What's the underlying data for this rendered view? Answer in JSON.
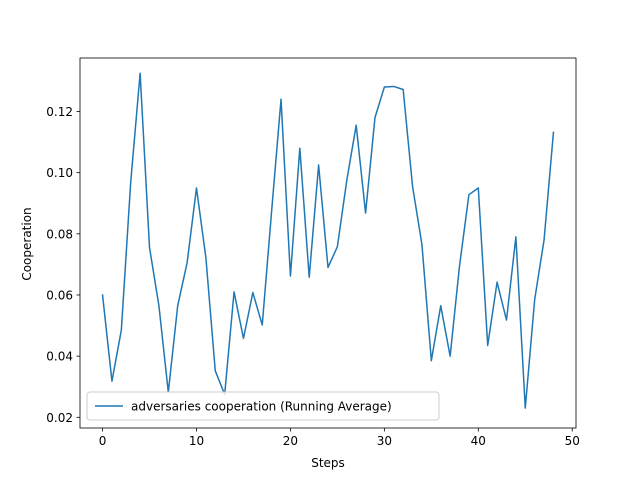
{
  "chart_data": {
    "type": "line",
    "xlabel": "Steps",
    "ylabel": "Cooperation",
    "xlim": [
      -2.4,
      50.4
    ],
    "ylim": [
      0.0165,
      0.1375
    ],
    "xticks": [
      0,
      10,
      20,
      30,
      40,
      50
    ],
    "xtick_labels": [
      "0",
      "10",
      "20",
      "30",
      "40",
      "50"
    ],
    "yticks": [
      0.02,
      0.04,
      0.06,
      0.08,
      0.1,
      0.12
    ],
    "ytick_labels": [
      "0.02",
      "0.04",
      "0.06",
      "0.08",
      "0.10",
      "0.12"
    ],
    "grid": false,
    "legend_position": "lower-left",
    "series": [
      {
        "name": "adversaries cooperation (Running Average)",
        "color": "#1f77b4",
        "x": [
          0,
          1,
          2,
          3,
          4,
          5,
          6,
          7,
          8,
          9,
          10,
          11,
          12,
          13,
          14,
          15,
          16,
          17,
          18,
          19,
          20,
          21,
          22,
          23,
          24,
          25,
          26,
          27,
          28,
          29,
          30,
          31,
          32,
          33,
          34,
          35,
          36,
          37,
          38,
          39,
          40,
          41,
          42,
          43,
          44,
          45,
          46,
          47,
          48
        ],
        "values": [
          0.06,
          0.0318,
          0.0485,
          0.097,
          0.1325,
          0.0755,
          0.0565,
          0.0282,
          0.0565,
          0.0705,
          0.095,
          0.0722,
          0.0352,
          0.0275,
          0.061,
          0.0458,
          0.0608,
          0.0502,
          0.0875,
          0.124,
          0.0662,
          0.108,
          0.0658,
          0.1025,
          0.069,
          0.0758,
          0.0975,
          0.1155,
          0.0868,
          0.118,
          0.128,
          0.1282,
          0.1272,
          0.0955,
          0.0765,
          0.0385,
          0.0565,
          0.04,
          0.0695,
          0.0928,
          0.095,
          0.0435,
          0.0642,
          0.0518,
          0.079,
          0.023,
          0.0585,
          0.078,
          0.1132
        ]
      }
    ]
  }
}
